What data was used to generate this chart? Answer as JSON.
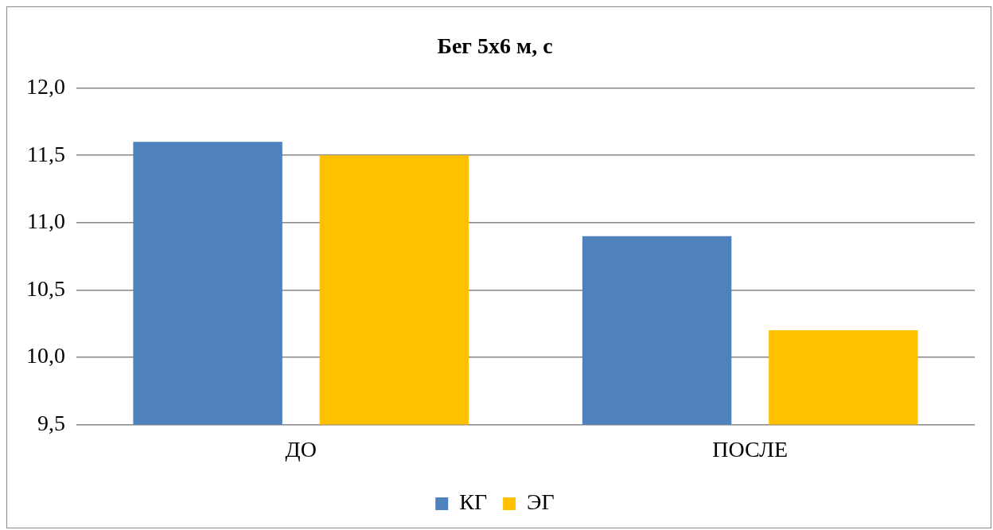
{
  "chart_data": {
    "type": "bar",
    "title": "Бег 5х6 м, с",
    "categories": [
      "ДО",
      "ПОСЛЕ"
    ],
    "series": [
      {
        "name": "КГ",
        "color": "#4f81bd",
        "values": [
          11.6,
          10.9
        ]
      },
      {
        "name": "ЭГ",
        "color": "#ffc000",
        "values": [
          11.5,
          10.2
        ]
      }
    ],
    "ylim": [
      9.5,
      12.0
    ],
    "yticks": [
      {
        "value": 9.5,
        "label": "9,5"
      },
      {
        "value": 10.0,
        "label": "10,0"
      },
      {
        "value": 10.5,
        "label": "10,5"
      },
      {
        "value": 11.0,
        "label": "11,0"
      },
      {
        "value": 11.5,
        "label": "11,5"
      },
      {
        "value": 12.0,
        "label": "12,0"
      }
    ],
    "grid": "y",
    "legend": "bottom"
  }
}
